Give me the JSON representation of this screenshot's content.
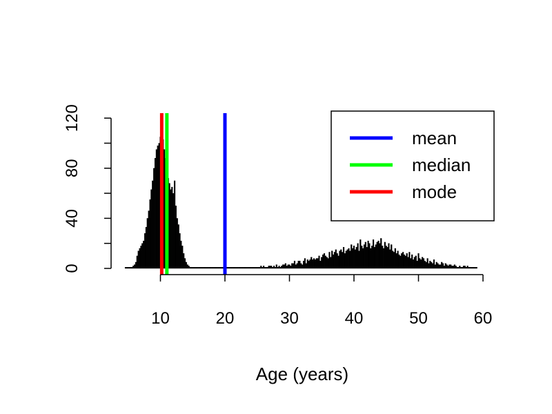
{
  "chart_data": {
    "type": "bar",
    "xlabel": "Age (years)",
    "ylabel": "",
    "xlim": [
      5,
      60
    ],
    "ylim": [
      0,
      125
    ],
    "x_ticks": [
      {
        "value": 10,
        "label": "10"
      },
      {
        "value": 20,
        "label": "20"
      },
      {
        "value": 30,
        "label": "30"
      },
      {
        "value": 40,
        "label": "40"
      },
      {
        "value": 50,
        "label": "50"
      },
      {
        "value": 60,
        "label": "60"
      }
    ],
    "y_ticks": [
      {
        "value": 0,
        "label": "0"
      },
      {
        "value": 20,
        "label": ""
      },
      {
        "value": 40,
        "label": "40"
      },
      {
        "value": 60,
        "label": ""
      },
      {
        "value": 80,
        "label": "80"
      },
      {
        "value": 100,
        "label": ""
      },
      {
        "value": 120,
        "label": "120"
      }
    ],
    "bin_width": 0.2,
    "histogram": {
      "x_start": 4.5,
      "counts": [
        1,
        1,
        1,
        1,
        1,
        1,
        2,
        3,
        5,
        10,
        14,
        16,
        18,
        20,
        22,
        28,
        33,
        40,
        46,
        55,
        63,
        70,
        80,
        88,
        95,
        98,
        100,
        105,
        108,
        103,
        95,
        88,
        80,
        72,
        68,
        63,
        65,
        60,
        70,
        50,
        40,
        35,
        28,
        22,
        18,
        12,
        8,
        5,
        3,
        2,
        1,
        1,
        1,
        1,
        1,
        1,
        1,
        1,
        1,
        1,
        1,
        1,
        1,
        1,
        1,
        1,
        1,
        1,
        1,
        1,
        1,
        1,
        1,
        1,
        1,
        1,
        1,
        1,
        1,
        1,
        1,
        1,
        1,
        1,
        1,
        1,
        1,
        1,
        1,
        1,
        1,
        1,
        1,
        1,
        1,
        1,
        1,
        1,
        1,
        1,
        1,
        1,
        1,
        1,
        1,
        2,
        1,
        2,
        1,
        1,
        1,
        2,
        2,
        2,
        1,
        2,
        1,
        3,
        1,
        2,
        1,
        2,
        3,
        3,
        4,
        2,
        3,
        3,
        2,
        4,
        4,
        6,
        3,
        4,
        6,
        6,
        4,
        3,
        6,
        8,
        4,
        7,
        6,
        7,
        9,
        7,
        8,
        7,
        8,
        8,
        10,
        6,
        9,
        11,
        12,
        10,
        9,
        8,
        13,
        9,
        14,
        11,
        13,
        15,
        12,
        10,
        14,
        15,
        13,
        17,
        12,
        14,
        15,
        16,
        14,
        19,
        16,
        18,
        15,
        17,
        20,
        14,
        23,
        18,
        16,
        19,
        21,
        17,
        22,
        20,
        16,
        18,
        23,
        17,
        19,
        21,
        22,
        20,
        24,
        18,
        16,
        21,
        18,
        17,
        20,
        15,
        19,
        14,
        13,
        16,
        12,
        14,
        11,
        10,
        12,
        13,
        11,
        10,
        12,
        9,
        13,
        8,
        11,
        7,
        9,
        10,
        6,
        12,
        8,
        7,
        9,
        8,
        6,
        5,
        8,
        4,
        6,
        5,
        4,
        7,
        3,
        5,
        4,
        3,
        3,
        5,
        4,
        2,
        4,
        3,
        2,
        3,
        3,
        2,
        2,
        3,
        2,
        1,
        1,
        2,
        1,
        1,
        2,
        2,
        1,
        2,
        1,
        1,
        1,
        1,
        1,
        1,
        1
      ]
    },
    "series": [
      {
        "name": "mean",
        "x": 20.0,
        "color": "#0000ff"
      },
      {
        "name": "median",
        "x": 11.0,
        "color": "#00ff00"
      },
      {
        "name": "mode",
        "x": 10.2,
        "color": "#ff0000"
      }
    ],
    "legend": {
      "position": "top-right",
      "entries": [
        {
          "label": "mean",
          "color": "#0000ff"
        },
        {
          "label": "median",
          "color": "#00ff00"
        },
        {
          "label": "mode",
          "color": "#ff0000"
        }
      ]
    },
    "grid": false
  }
}
